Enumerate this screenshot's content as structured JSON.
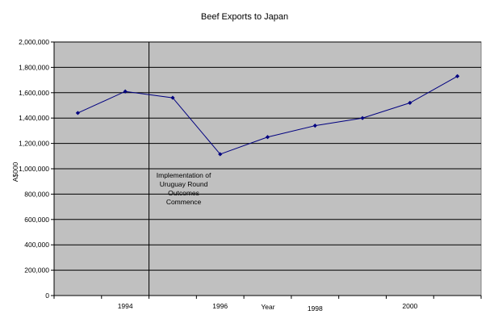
{
  "chart_data": {
    "type": "line",
    "title": "Beef Exports to Japan",
    "xlabel": "Year",
    "ylabel": "A$000",
    "ylim": [
      0,
      2000000
    ],
    "yticks": [
      0,
      200000,
      400000,
      600000,
      800000,
      1000000,
      1200000,
      1400000,
      1600000,
      1800000,
      2000000
    ],
    "ytick_labels": [
      "0",
      "200,000",
      "400,000",
      "600,000",
      "800,000",
      "1,000,000",
      "1,200,000",
      "1,400,000",
      "1,600,000",
      "1,800,000",
      "2,000,000"
    ],
    "xlim": [
      1992.5,
      2001.5
    ],
    "x_tick_labels": [
      {
        "x": 1994,
        "label": "1994"
      },
      {
        "x": 1996,
        "label": "1996"
      },
      {
        "x": 1998,
        "label": "1998"
      },
      {
        "x": 2000,
        "label": "2000"
      }
    ],
    "grid": true,
    "background": "#c0c0c0",
    "line_color": "#000080",
    "series": [
      {
        "x": [
          1993,
          1994,
          1995,
          1996,
          1997,
          1998,
          1999,
          2000,
          2001
        ],
        "values": [
          1440000,
          1610000,
          1560000,
          1115000,
          1250000,
          1340000,
          1400000,
          1520000,
          1730000
        ]
      }
    ],
    "annotation": {
      "x": 1994.5,
      "lines": [
        "Implementation of",
        "Uruguay Round",
        "Outcomes",
        "Commence"
      ]
    }
  }
}
